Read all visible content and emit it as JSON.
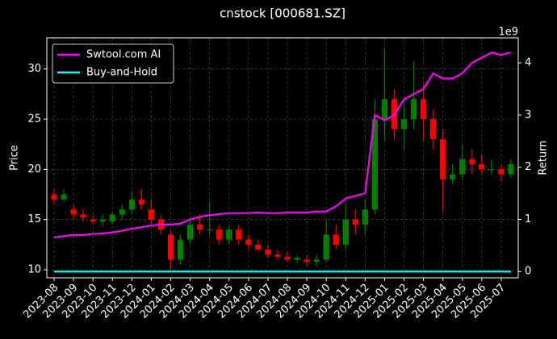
{
  "chart_data": {
    "type": "candlestick",
    "title": "cnstock [000681.SZ]",
    "y_label": "Price",
    "y2_label": "Return",
    "y2_offset_label": "1e9",
    "categories": [
      "2023-08",
      null,
      "2023-09",
      null,
      "2023-10",
      null,
      "2023-11",
      null,
      "2023-12",
      null,
      "2024-01",
      null,
      "2024-02",
      null,
      "2024-03",
      null,
      "2024-04",
      null,
      "2024-05",
      null,
      "2024-06",
      null,
      "2024-07",
      null,
      "2024-08",
      null,
      "2024-09",
      null,
      "2024-10",
      null,
      "2024-11",
      null,
      "2024-12",
      null,
      "2025-01",
      null,
      "2025-02",
      null,
      "2025-03",
      null,
      "2025-04",
      null,
      "2025-05",
      null,
      "2025-06",
      null,
      "2025-07",
      null
    ],
    "open": [
      17.5,
      17,
      16,
      15.5,
      15,
      14.8,
      14.8,
      15.5,
      16,
      17,
      16,
      15,
      13.5,
      11,
      13,
      14.5,
      14,
      14,
      13,
      14,
      13,
      12.5,
      12,
      11.5,
      11.3,
      11,
      11,
      10.8,
      11,
      13.5,
      12.5,
      15,
      14.5,
      16,
      25,
      27,
      24,
      25,
      27,
      25,
      23,
      19,
      19.5,
      21,
      20.5,
      20,
      20,
      19.5
    ],
    "high": [
      18,
      18,
      16.5,
      16,
      15.5,
      15.5,
      15.8,
      16.5,
      17.8,
      18,
      17,
      15.5,
      14,
      13.5,
      15,
      15.5,
      16.8,
      14.5,
      14.5,
      14.5,
      13.5,
      13,
      12.5,
      12,
      11.8,
      11.5,
      11.5,
      11.5,
      15,
      14.5,
      16.5,
      16,
      17,
      27,
      32,
      28,
      27,
      30.8,
      28.5,
      26,
      24,
      20.5,
      22.5,
      22,
      21.5,
      21,
      20.5,
      21
    ],
    "low": [
      16.5,
      16.8,
      15,
      14.8,
      14.5,
      14.3,
      14.5,
      15,
      15.5,
      16,
      14.5,
      13.5,
      10,
      10.5,
      12.5,
      13.5,
      13.5,
      12.5,
      12.5,
      12.5,
      12,
      11.8,
      11.2,
      11,
      10.8,
      10.7,
      10.4,
      10.3,
      10.8,
      12,
      12,
      13.5,
      13.5,
      15.5,
      23,
      23,
      22,
      24,
      23,
      22,
      15.8,
      18.5,
      19,
      19.5,
      19.5,
      19.5,
      18.8,
      19.2
    ],
    "close": [
      17,
      17.5,
      15.5,
      15.2,
      14.8,
      15,
      15.5,
      16,
      17,
      16.5,
      15,
      14,
      11,
      13,
      14.5,
      14,
      14,
      13,
      14,
      13,
      12.5,
      12,
      11.5,
      11.3,
      11,
      11.2,
      10.8,
      11,
      13.5,
      12.5,
      15,
      14.5,
      16,
      25,
      27,
      24,
      25,
      27,
      25,
      23,
      19,
      19.5,
      21,
      20.5,
      20,
      20,
      19.5,
      20.5
    ],
    "up_color": "#008000",
    "down_color": "#ff0000",
    "series": [
      {
        "name": "Swtool.com AI",
        "color": "#ff00ff",
        "axis": "y2",
        "values": [
          0.65,
          0.68,
          0.7,
          0.7,
          0.72,
          0.73,
          0.75,
          0.78,
          0.82,
          0.85,
          0.88,
          0.9,
          0.9,
          0.92,
          1.0,
          1.05,
          1.08,
          1.1,
          1.12,
          1.12,
          1.12,
          1.13,
          1.12,
          1.12,
          1.13,
          1.13,
          1.13,
          1.15,
          1.15,
          1.25,
          1.4,
          1.45,
          1.5,
          3.0,
          2.9,
          3.0,
          3.3,
          3.4,
          3.5,
          3.8,
          3.7,
          3.7,
          3.8,
          4.0,
          4.1,
          4.2,
          4.15,
          4.2
        ]
      },
      {
        "name": "Buy-and-Hold",
        "color": "#00ffff",
        "axis": "y2",
        "values": [
          0,
          0,
          0,
          0,
          0,
          0,
          0,
          0,
          0,
          0,
          0,
          0,
          0,
          0,
          0,
          0,
          0,
          0,
          0,
          0,
          0,
          0,
          0,
          0,
          0,
          0,
          0,
          0,
          0,
          0,
          0,
          0,
          0,
          0,
          0,
          0,
          0,
          0,
          0,
          0,
          0,
          0,
          0,
          0,
          0,
          0,
          0,
          0
        ]
      }
    ],
    "ylim": [
      9.2,
      33.1
    ],
    "yticks": [
      10,
      15,
      20,
      25,
      30
    ],
    "y2lim": [
      -0.12,
      4.48
    ],
    "y2ticks": [
      0,
      1,
      2,
      3,
      4
    ],
    "grid": true,
    "legend": "upper left"
  }
}
